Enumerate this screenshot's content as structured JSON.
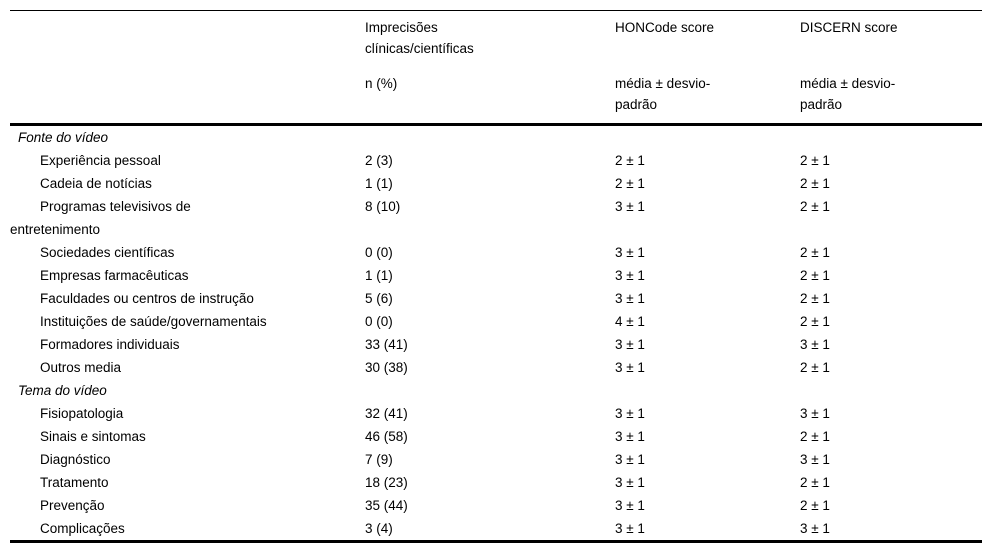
{
  "chart_data": {
    "type": "table",
    "columns": [
      {
        "title": "Imprecisões\nclínicas/científicas",
        "subtitle": "n (%)"
      },
      {
        "title": "HONCode score",
        "subtitle": "média ± desvio-\npadrão"
      },
      {
        "title": "DISCERN score",
        "subtitle": "média ± desvio-\npadrão"
      }
    ],
    "rows": [
      {
        "type": "section",
        "label": "Fonte do vídeo"
      },
      {
        "type": "item",
        "label": "Experiência pessoal",
        "n_pct": "2 (3)",
        "honcode": "2 ± 1",
        "discern": "2 ± 1"
      },
      {
        "type": "item",
        "label": "Cadeia de notícias",
        "n_pct": "1 (1)",
        "honcode": "2 ± 1",
        "discern": "2 ± 1"
      },
      {
        "type": "item",
        "label": "Programas televisivos de\nentretenimento",
        "n_pct": "8 (10)",
        "honcode": "3 ± 1",
        "discern": "2 ± 1"
      },
      {
        "type": "item",
        "label": "Sociedades científicas",
        "n_pct": "0 (0)",
        "honcode": "3 ± 1",
        "discern": "2 ± 1"
      },
      {
        "type": "item",
        "label": "Empresas farmacêuticas",
        "n_pct": "1 (1)",
        "honcode": "3 ± 1",
        "discern": "2 ± 1"
      },
      {
        "type": "item",
        "label": "Faculdades ou centros de instrução",
        "n_pct": "5 (6)",
        "honcode": "3 ± 1",
        "discern": "2 ± 1"
      },
      {
        "type": "item",
        "label": "Instituições de saúde/governamentais",
        "n_pct": "0 (0)",
        "honcode": "4 ± 1",
        "discern": "2 ± 1"
      },
      {
        "type": "item",
        "label": "Formadores individuais",
        "n_pct": "33 (41)",
        "honcode": "3 ± 1",
        "discern": "3 ± 1"
      },
      {
        "type": "item",
        "label": "Outros media",
        "n_pct": "30 (38)",
        "honcode": "3 ± 1",
        "discern": "2 ± 1"
      },
      {
        "type": "section",
        "label": "Tema do vídeo"
      },
      {
        "type": "item",
        "label": "Fisiopatologia",
        "n_pct": "32 (41)",
        "honcode": "3 ± 1",
        "discern": "3 ± 1"
      },
      {
        "type": "item",
        "label": "Sinais e sintomas",
        "n_pct": "46 (58)",
        "honcode": "3 ± 1",
        "discern": "2 ± 1"
      },
      {
        "type": "item",
        "label": "Diagnóstico",
        "n_pct": "7 (9)",
        "honcode": "3 ± 1",
        "discern": "3 ± 1"
      },
      {
        "type": "item",
        "label": "Tratamento",
        "n_pct": "18 (23)",
        "honcode": "3 ± 1",
        "discern": "2 ± 1"
      },
      {
        "type": "item",
        "label": "Prevenção",
        "n_pct": "35 (44)",
        "honcode": "3 ± 1",
        "discern": "2 ± 1"
      },
      {
        "type": "item",
        "label": "Complicações",
        "n_pct": "3 (4)",
        "honcode": "3 ± 1",
        "discern": "3 ± 1"
      }
    ]
  }
}
